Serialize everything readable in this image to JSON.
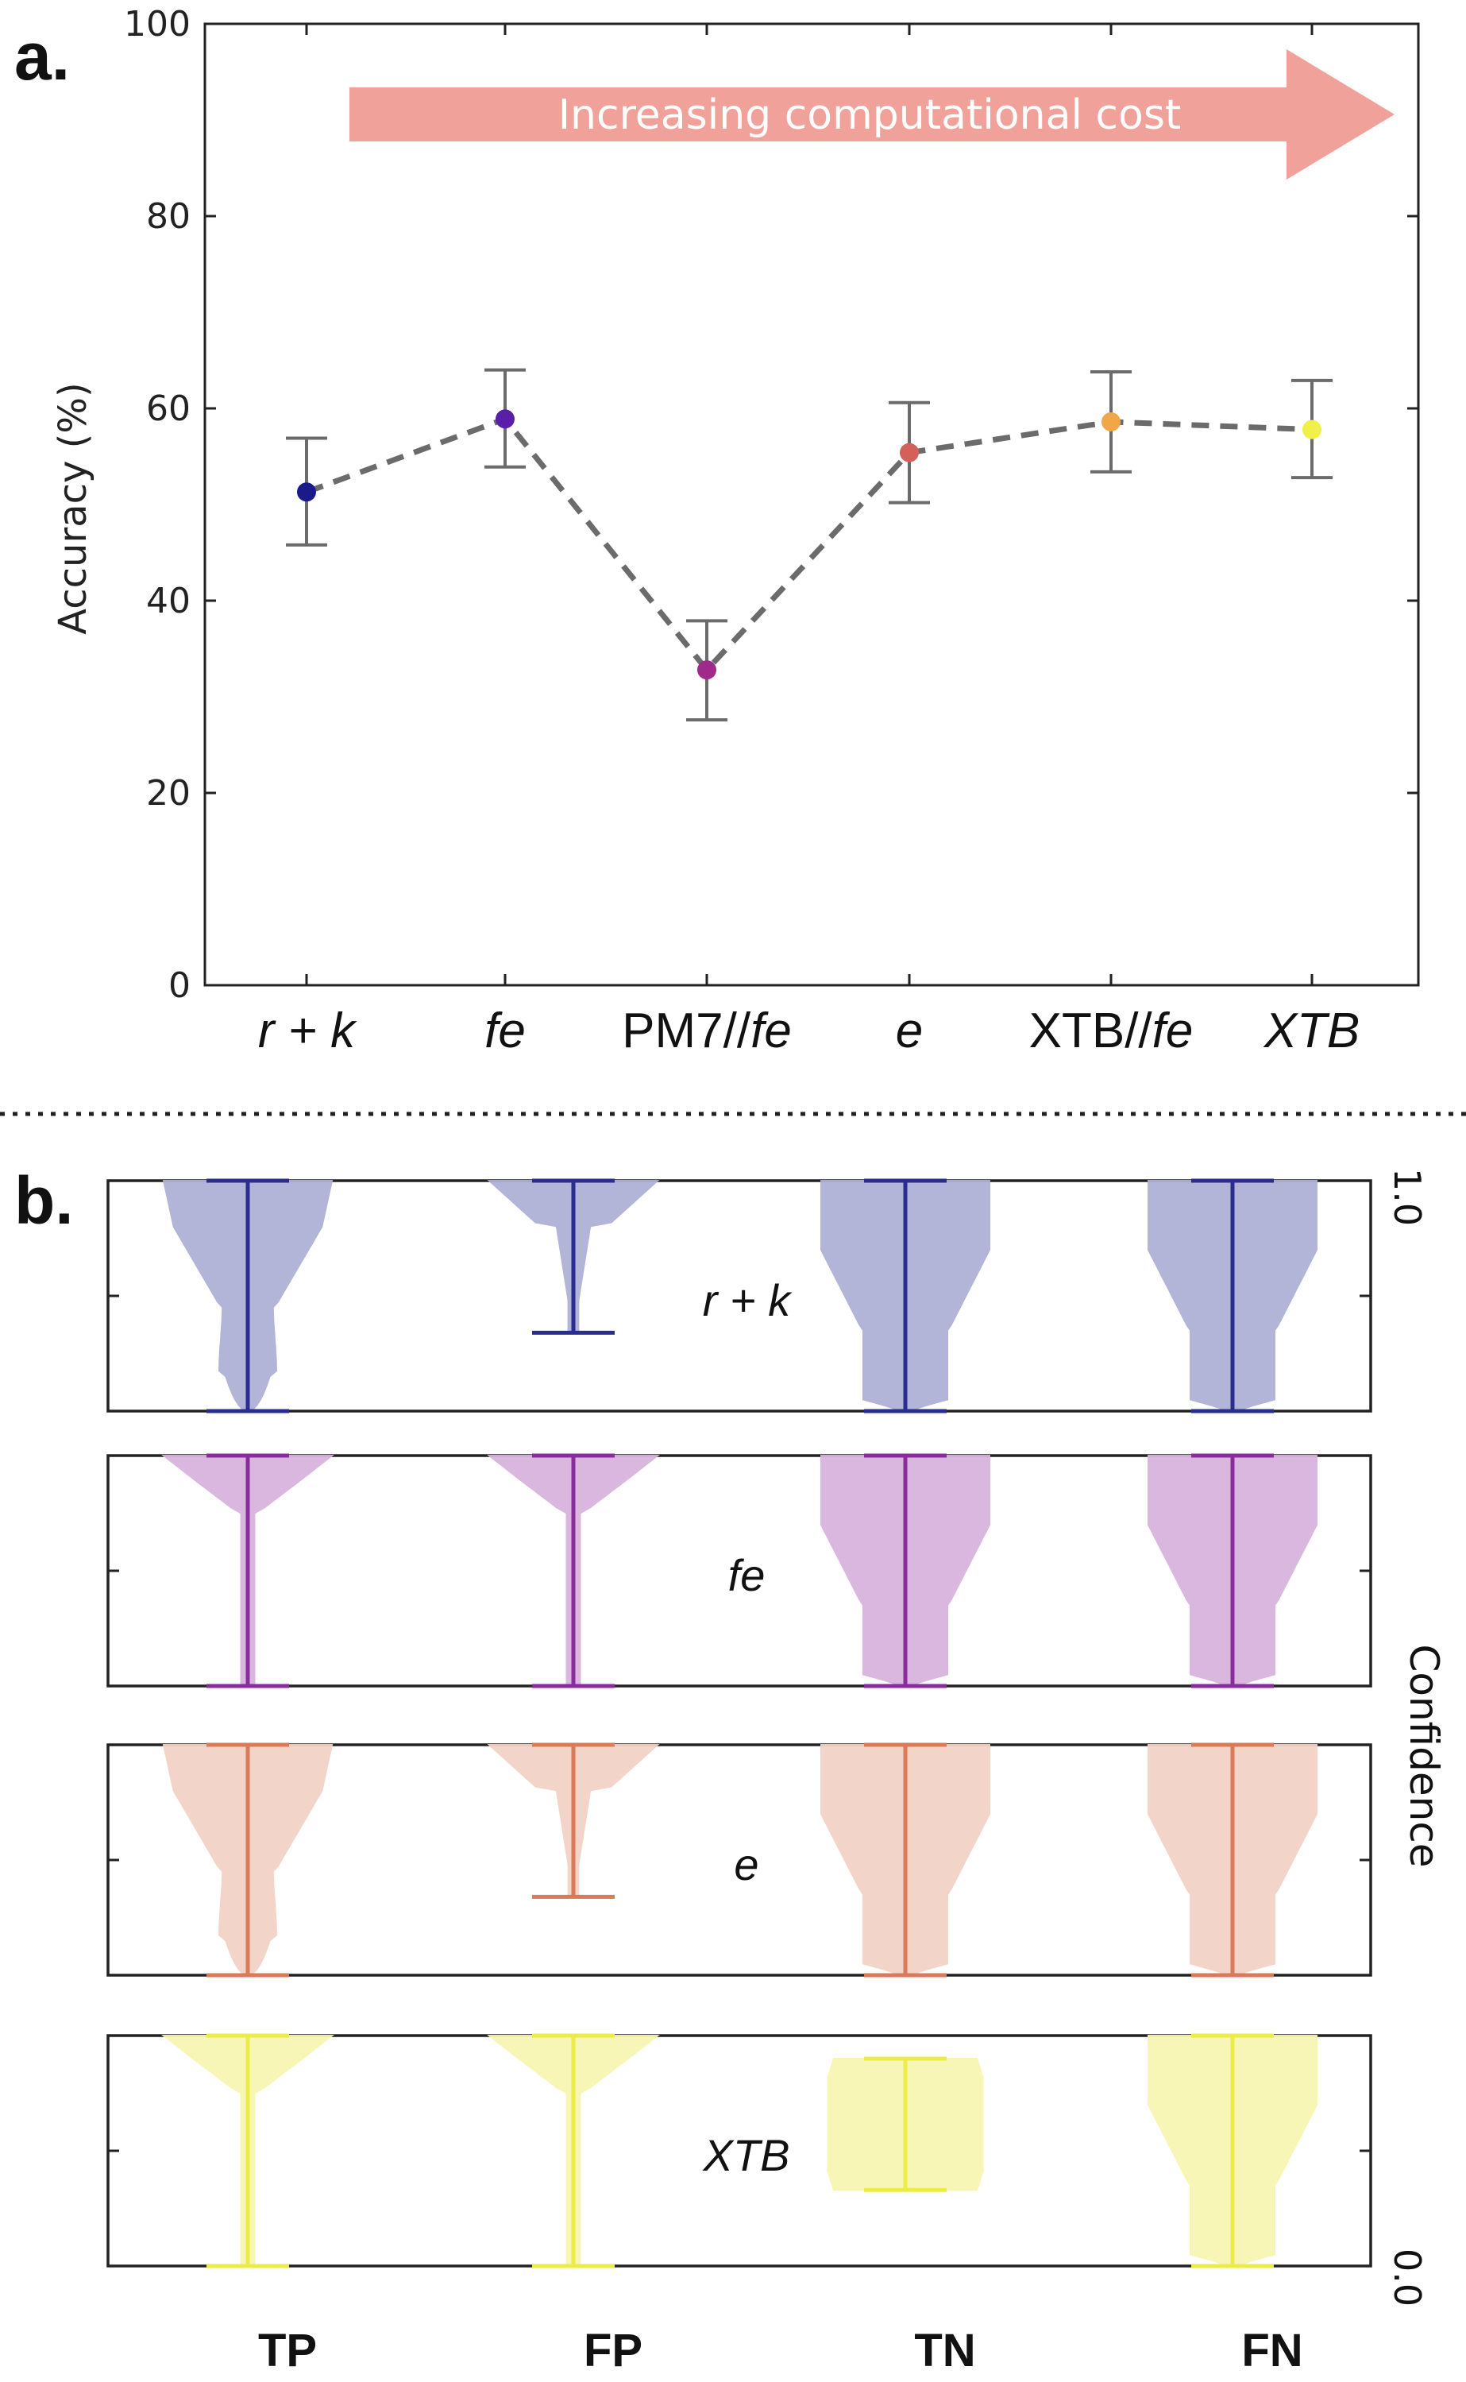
{
  "chart_data": [
    {
      "panel": "a.",
      "type": "line",
      "ylabel": "Accuracy (%)",
      "ylim": [
        0,
        100
      ],
      "yticks": [
        "0",
        "20",
        "40",
        "60",
        "80",
        "100"
      ],
      "categories": [
        "r + k",
        "fe",
        "PM7//fe",
        "e",
        "XTB//fe",
        "XTB"
      ],
      "values": [
        51.3,
        58.9,
        32.8,
        55.4,
        58.6,
        57.8
      ],
      "error_low": [
        45.8,
        53.9,
        27.6,
        50.2,
        53.4,
        52.8
      ],
      "error_high": [
        56.9,
        64.0,
        37.9,
        60.6,
        63.8,
        62.9
      ],
      "point_colors": [
        "#1a1a8a",
        "#5a1fa8",
        "#a02a8a",
        "#d4605a",
        "#f2a64a",
        "#f1ef4a"
      ],
      "line_style": "dashed",
      "annotation": "Increasing computational cost",
      "annotation_color": "#f0a199",
      "grid": false
    },
    {
      "panel": "b.",
      "type": "violin",
      "ylabel": "Confidence",
      "ylim": [
        0.0,
        1.0
      ],
      "yticks": [
        "0.0",
        "1.0"
      ],
      "columns": [
        "TP",
        "FP",
        "TN",
        "FN"
      ],
      "rows": [
        {
          "label": "r + k",
          "color": "#2a2d8f",
          "fill": "#aeb0d6",
          "ranges": [
            [
              0.0,
              1.0
            ],
            [
              0.34,
              1.0
            ],
            [
              0.0,
              1.0
            ],
            [
              0.0,
              1.0
            ]
          ]
        },
        {
          "label": "fe",
          "color": "#8a2d9c",
          "fill": "#d8b4dd",
          "ranges": [
            [
              0.0,
              1.0
            ],
            [
              0.0,
              1.0
            ],
            [
              0.0,
              1.0
            ],
            [
              0.0,
              1.0
            ]
          ]
        },
        {
          "label": "e",
          "color": "#d97a58",
          "fill": "#f3d2c6",
          "ranges": [
            [
              0.0,
              1.0
            ],
            [
              0.34,
              1.0
            ],
            [
              0.0,
              1.0
            ],
            [
              0.0,
              1.0
            ]
          ]
        },
        {
          "label": "XTB",
          "color": "#ecec48",
          "fill": "#f8f6b4",
          "ranges": [
            [
              0.0,
              1.0
            ],
            [
              0.0,
              1.0
            ],
            [
              0.33,
              0.9
            ],
            [
              0.0,
              1.0
            ]
          ]
        }
      ],
      "grid": false
    }
  ]
}
